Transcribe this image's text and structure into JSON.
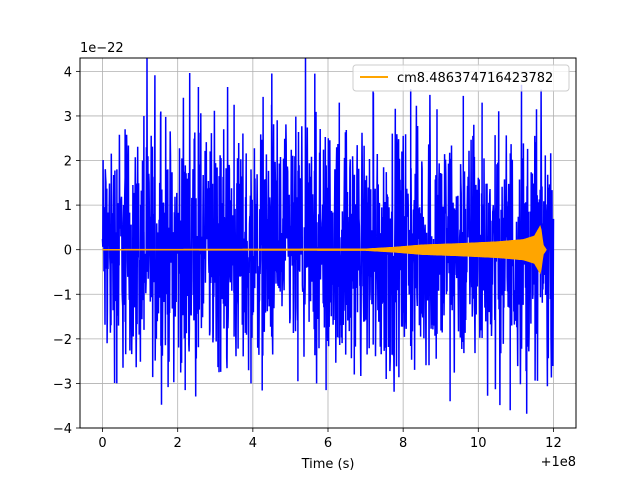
{
  "chart_data": {
    "type": "line",
    "title": "",
    "xlabel": "Time (s)",
    "ylabel": "",
    "x_offset_label": "+1e8",
    "y_scale_label": "1e−22",
    "xlim": [
      -0.6,
      12.6
    ],
    "ylim": [
      -4,
      4.3
    ],
    "x_ticks": [
      0,
      2,
      4,
      6,
      8,
      10,
      12
    ],
    "x_tick_labels": [
      "0",
      "2",
      "4",
      "6",
      "8",
      "10",
      "12"
    ],
    "y_ticks": [
      -4,
      -3,
      -2,
      -1,
      0,
      1,
      2,
      3,
      4
    ],
    "y_tick_labels": [
      "−4",
      "−3",
      "−2",
      "−1",
      "0",
      "1",
      "2",
      "3",
      "4"
    ],
    "grid": true,
    "legend_position": "top-right",
    "series": [
      {
        "name": "",
        "color": "#0000ff",
        "description_of_shape": "noise",
        "x_start": 0,
        "x_end": 12.0,
        "typical_amplitude": 1.3,
        "peaks": [
          {
            "x": 0.38,
            "y": -3.0
          },
          {
            "x": 0.6,
            "y": 2.7
          },
          {
            "x": 1.1,
            "y": 3.0
          },
          {
            "x": 1.55,
            "y": 3.1
          },
          {
            "x": 2.2,
            "y": -3.15
          },
          {
            "x": 2.55,
            "y": 3.65
          },
          {
            "x": 3.1,
            "y": -2.75
          },
          {
            "x": 3.5,
            "y": 3.25
          },
          {
            "x": 3.95,
            "y": -3.0
          },
          {
            "x": 4.5,
            "y": 3.25
          },
          {
            "x": 5.2,
            "y": -2.95
          },
          {
            "x": 5.65,
            "y": 3.95
          },
          {
            "x": 5.95,
            "y": -3.15
          },
          {
            "x": 6.3,
            "y": 3.3
          },
          {
            "x": 6.7,
            "y": -2.8
          },
          {
            "x": 7.2,
            "y": 3.55
          },
          {
            "x": 7.55,
            "y": -2.9
          },
          {
            "x": 8.2,
            "y": 3.6
          },
          {
            "x": 8.9,
            "y": 3.15
          },
          {
            "x": 9.25,
            "y": -3.4
          },
          {
            "x": 9.6,
            "y": 3.45
          },
          {
            "x": 10.1,
            "y": 3.3
          },
          {
            "x": 10.85,
            "y": -3.6
          },
          {
            "x": 11.15,
            "y": 3.7
          },
          {
            "x": 11.55,
            "y": 3.15
          },
          {
            "x": 11.95,
            "y": -2.1
          }
        ]
      },
      {
        "name": "cm8.486374716423782",
        "color": "#ffa500",
        "description_of_shape": "chirp",
        "envelope": [
          {
            "x": 0.0,
            "y": 0.0
          },
          {
            "x": 7.0,
            "y": 0.01
          },
          {
            "x": 7.8,
            "y": 0.05
          },
          {
            "x": 8.5,
            "y": 0.1
          },
          {
            "x": 9.5,
            "y": 0.13
          },
          {
            "x": 10.5,
            "y": 0.17
          },
          {
            "x": 11.2,
            "y": 0.22
          },
          {
            "x": 11.5,
            "y": 0.3
          },
          {
            "x": 11.65,
            "y": 0.52
          },
          {
            "x": 11.72,
            "y": 0.1
          },
          {
            "x": 11.8,
            "y": 0.0
          }
        ]
      }
    ]
  }
}
